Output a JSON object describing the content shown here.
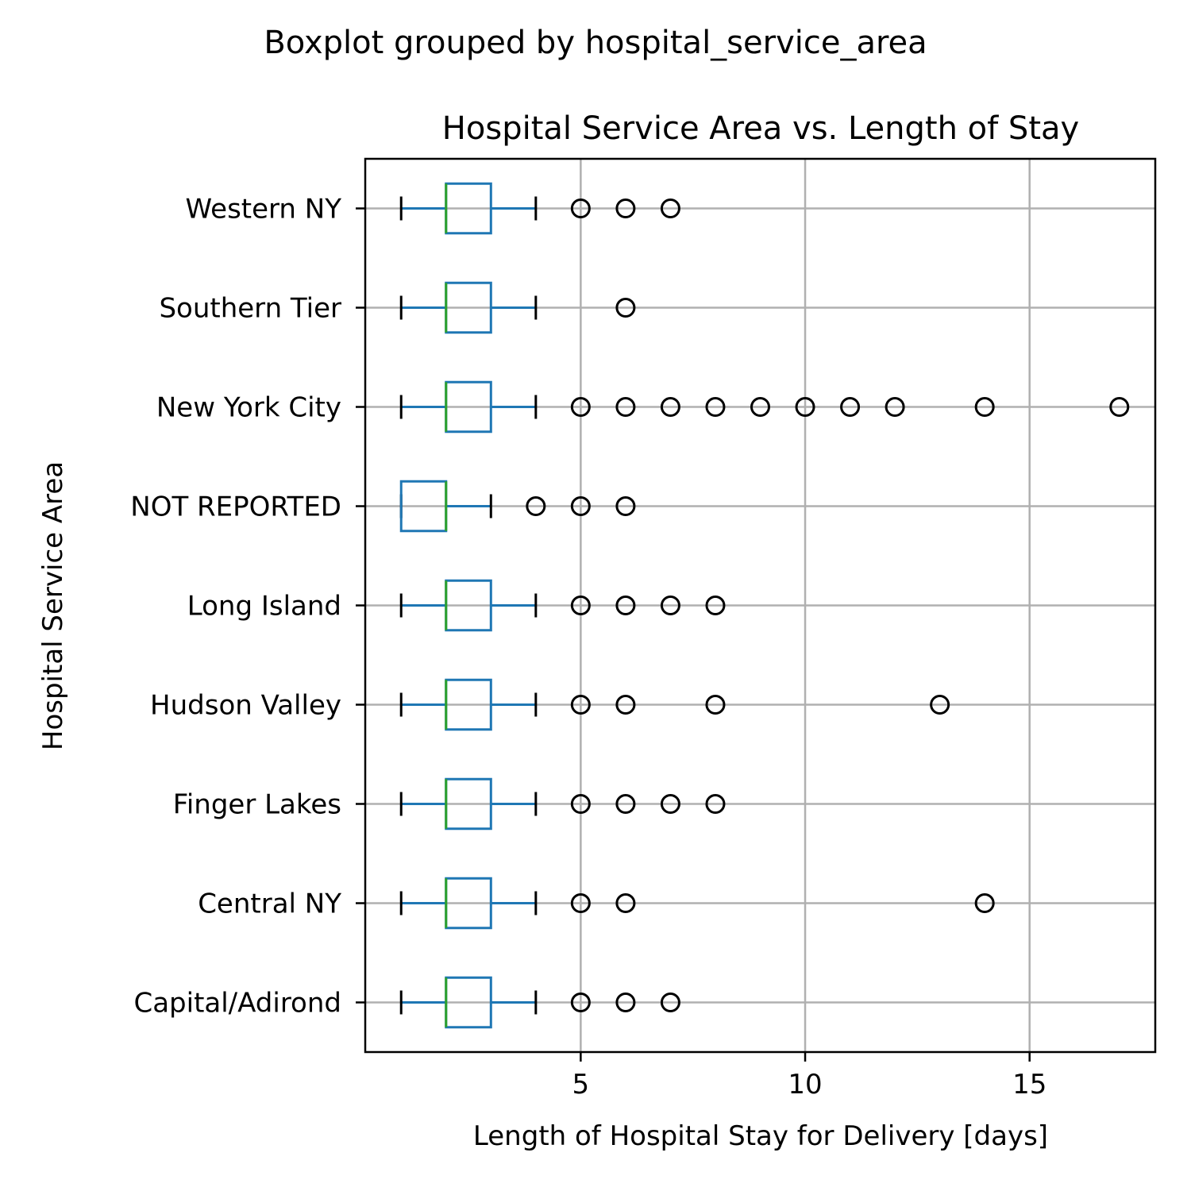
{
  "chart_data": {
    "type": "boxplot",
    "orientation": "horizontal",
    "suptitle": "Boxplot grouped by hospital_service_area",
    "title": "Hospital Service Area vs. Length of Stay",
    "xlabel": "Length of Hospital Stay for Delivery [days]",
    "ylabel": "Hospital Service Area",
    "xlim": [
      0.2,
      17.8
    ],
    "xticks": [
      5,
      10,
      15
    ],
    "grid": true,
    "colors": {
      "box": "#1f77b4",
      "median": "#2ca02c",
      "flier": "#000000",
      "grid": "#b0b0b0"
    },
    "categories": [
      "Capital/Adirond",
      "Central NY",
      "Finger Lakes",
      "Hudson Valley",
      "Long Island",
      "NOT REPORTED",
      "New York City",
      "Southern Tier",
      "Western NY"
    ],
    "boxes": [
      {
        "category": "Capital/Adirond",
        "whisker_low": 1,
        "q1": 2,
        "median": 2,
        "q3": 3,
        "whisker_high": 4,
        "fliers": [
          5,
          6,
          7
        ]
      },
      {
        "category": "Central NY",
        "whisker_low": 1,
        "q1": 2,
        "median": 2,
        "q3": 3,
        "whisker_high": 4,
        "fliers": [
          5,
          6,
          14
        ]
      },
      {
        "category": "Finger Lakes",
        "whisker_low": 1,
        "q1": 2,
        "median": 2,
        "q3": 3,
        "whisker_high": 4,
        "fliers": [
          5,
          6,
          7,
          8
        ]
      },
      {
        "category": "Hudson Valley",
        "whisker_low": 1,
        "q1": 2,
        "median": 2,
        "q3": 3,
        "whisker_high": 4,
        "fliers": [
          5,
          6,
          8,
          13
        ]
      },
      {
        "category": "Long Island",
        "whisker_low": 1,
        "q1": 2,
        "median": 2,
        "q3": 3,
        "whisker_high": 4,
        "fliers": [
          5,
          6,
          7,
          8
        ]
      },
      {
        "category": "NOT REPORTED",
        "whisker_low": 1,
        "q1": 1,
        "median": 2,
        "q3": 2,
        "whisker_high": 3,
        "fliers": [
          4,
          5,
          6
        ]
      },
      {
        "category": "New York City",
        "whisker_low": 1,
        "q1": 2,
        "median": 2,
        "q3": 3,
        "whisker_high": 4,
        "fliers": [
          5,
          6,
          7,
          8,
          9,
          10,
          11,
          12,
          14,
          17
        ]
      },
      {
        "category": "Southern Tier",
        "whisker_low": 1,
        "q1": 2,
        "median": 2,
        "q3": 3,
        "whisker_high": 4,
        "fliers": [
          6
        ]
      },
      {
        "category": "Western NY",
        "whisker_low": 1,
        "q1": 2,
        "median": 2,
        "q3": 3,
        "whisker_high": 4,
        "fliers": [
          5,
          6,
          7
        ]
      }
    ]
  }
}
